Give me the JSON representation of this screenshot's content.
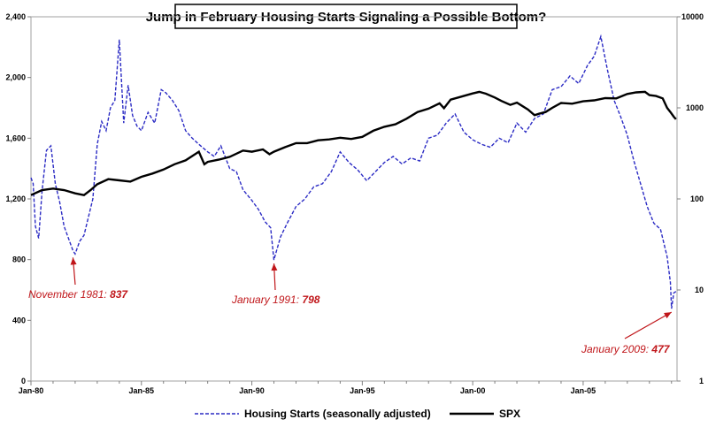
{
  "chart_data": {
    "type": "line",
    "title": "Jump in February Housing Starts Signaling a Possible Bottom?",
    "x_tick_labels": [
      "Jan-80",
      "Jan-85",
      "Jan-90",
      "Jan-95",
      "Jan-00",
      "Jan-05"
    ],
    "x_range": [
      1980.0,
      2009.25
    ],
    "y_left": {
      "ticks": [
        0,
        400,
        800,
        1200,
        1600,
        2000,
        2400
      ],
      "tick_labels": [
        "0",
        "400",
        "800",
        "1,200",
        "1,600",
        "2,000",
        "2,400"
      ],
      "range": [
        0,
        2400
      ]
    },
    "y_right": {
      "scale": "log",
      "ticks": [
        1,
        10,
        100,
        1000,
        10000
      ],
      "tick_labels": [
        "1",
        "10",
        "100",
        "1000",
        "10000"
      ],
      "range": [
        1,
        10000
      ]
    },
    "legend_position": "bottom",
    "series": [
      {
        "name": "Housing Starts (seasonally adjusted)",
        "axis": "left",
        "color": "#2b2bc4",
        "style": "dashed",
        "x": [
          1980.0,
          1980.1,
          1980.2,
          1980.35,
          1980.5,
          1980.7,
          1980.9,
          1981.1,
          1981.3,
          1981.5,
          1981.7,
          1981.9,
          1982.0,
          1982.2,
          1982.4,
          1982.6,
          1982.8,
          1983.0,
          1983.2,
          1983.4,
          1983.6,
          1983.8,
          1984.0,
          1984.2,
          1984.4,
          1984.6,
          1984.8,
          1985.0,
          1985.3,
          1985.6,
          1985.9,
          1986.1,
          1986.4,
          1986.7,
          1987.0,
          1987.3,
          1987.6,
          1988.0,
          1988.3,
          1988.6,
          1989.0,
          1989.3,
          1989.6,
          1990.0,
          1990.3,
          1990.6,
          1990.85,
          1991.0,
          1991.3,
          1991.6,
          1992.0,
          1992.4,
          1992.8,
          1993.2,
          1993.6,
          1994.0,
          1994.4,
          1994.8,
          1995.2,
          1995.6,
          1996.0,
          1996.4,
          1996.8,
          1997.2,
          1997.6,
          1998.0,
          1998.4,
          1998.8,
          1999.2,
          1999.6,
          2000.0,
          2000.4,
          2000.8,
          2001.2,
          2001.6,
          2002.0,
          2002.4,
          2002.8,
          2003.2,
          2003.6,
          2004.0,
          2004.4,
          2004.8,
          2005.2,
          2005.5,
          2005.8,
          2006.1,
          2006.4,
          2006.7,
          2007.0,
          2007.3,
          2007.6,
          2007.9,
          2008.2,
          2008.5,
          2008.8,
          2008.95,
          2009.0,
          2009.1,
          2009.2
        ],
        "y": [
          1340,
          1300,
          1020,
          940,
          1250,
          1520,
          1550,
          1300,
          1180,
          1020,
          940,
          860,
          837,
          920,
          960,
          1080,
          1200,
          1560,
          1710,
          1650,
          1800,
          1850,
          2250,
          1700,
          1950,
          1750,
          1680,
          1650,
          1770,
          1700,
          1920,
          1900,
          1850,
          1780,
          1650,
          1600,
          1560,
          1510,
          1480,
          1550,
          1400,
          1380,
          1260,
          1190,
          1130,
          1050,
          1010,
          798,
          950,
          1040,
          1150,
          1200,
          1280,
          1300,
          1380,
          1510,
          1440,
          1390,
          1320,
          1380,
          1440,
          1480,
          1430,
          1470,
          1450,
          1600,
          1620,
          1700,
          1760,
          1640,
          1590,
          1560,
          1540,
          1600,
          1570,
          1700,
          1640,
          1730,
          1760,
          1920,
          1940,
          2010,
          1960,
          2080,
          2140,
          2270,
          2050,
          1850,
          1740,
          1620,
          1450,
          1300,
          1150,
          1040,
          1000,
          820,
          650,
          477,
          580,
          590
        ]
      },
      {
        "name": "SPX",
        "axis": "right",
        "color": "#000000",
        "style": "solid",
        "x": [
          1980.0,
          1980.5,
          1981.0,
          1981.5,
          1982.0,
          1982.4,
          1982.7,
          1983.0,
          1983.5,
          1984.0,
          1984.5,
          1985.0,
          1985.5,
          1986.0,
          1986.5,
          1987.0,
          1987.6,
          1987.85,
          1988.0,
          1988.5,
          1989.0,
          1989.6,
          1990.0,
          1990.5,
          1990.8,
          1991.0,
          1991.5,
          1992.0,
          1992.5,
          1993.0,
          1993.5,
          1994.0,
          1994.5,
          1995.0,
          1995.5,
          1996.0,
          1996.5,
          1997.0,
          1997.5,
          1998.0,
          1998.5,
          1998.7,
          1999.0,
          1999.5,
          2000.0,
          2000.3,
          2000.6,
          2001.0,
          2001.3,
          2001.7,
          2002.0,
          2002.5,
          2002.8,
          2003.0,
          2003.3,
          2003.6,
          2004.0,
          2004.5,
          2005.0,
          2005.5,
          2006.0,
          2006.5,
          2007.0,
          2007.4,
          2007.8,
          2008.0,
          2008.3,
          2008.6,
          2008.8,
          2008.95,
          2009.1,
          2009.2
        ],
        "y": [
          110,
          125,
          130,
          125,
          115,
          110,
          125,
          145,
          165,
          160,
          155,
          175,
          190,
          210,
          240,
          265,
          330,
          240,
          255,
          270,
          290,
          340,
          330,
          350,
          310,
          330,
          370,
          410,
          410,
          440,
          450,
          470,
          455,
          480,
          560,
          620,
          660,
          760,
          900,
          980,
          1120,
          990,
          1230,
          1330,
          1440,
          1500,
          1430,
          1300,
          1190,
          1080,
          1140,
          960,
          830,
          860,
          900,
          1000,
          1130,
          1110,
          1180,
          1210,
          1280,
          1270,
          1420,
          1480,
          1500,
          1380,
          1350,
          1270,
          1000,
          900,
          800,
          750
        ]
      }
    ],
    "annotations": [
      {
        "label": "November 1981:",
        "value": "837",
        "x": 1981.9,
        "y": 837
      },
      {
        "label": "January 1991:",
        "value": "798",
        "x": 1991.0,
        "y": 798
      },
      {
        "label": "January 2009:",
        "value": "477",
        "x": 2009.0,
        "y": 477
      }
    ]
  }
}
